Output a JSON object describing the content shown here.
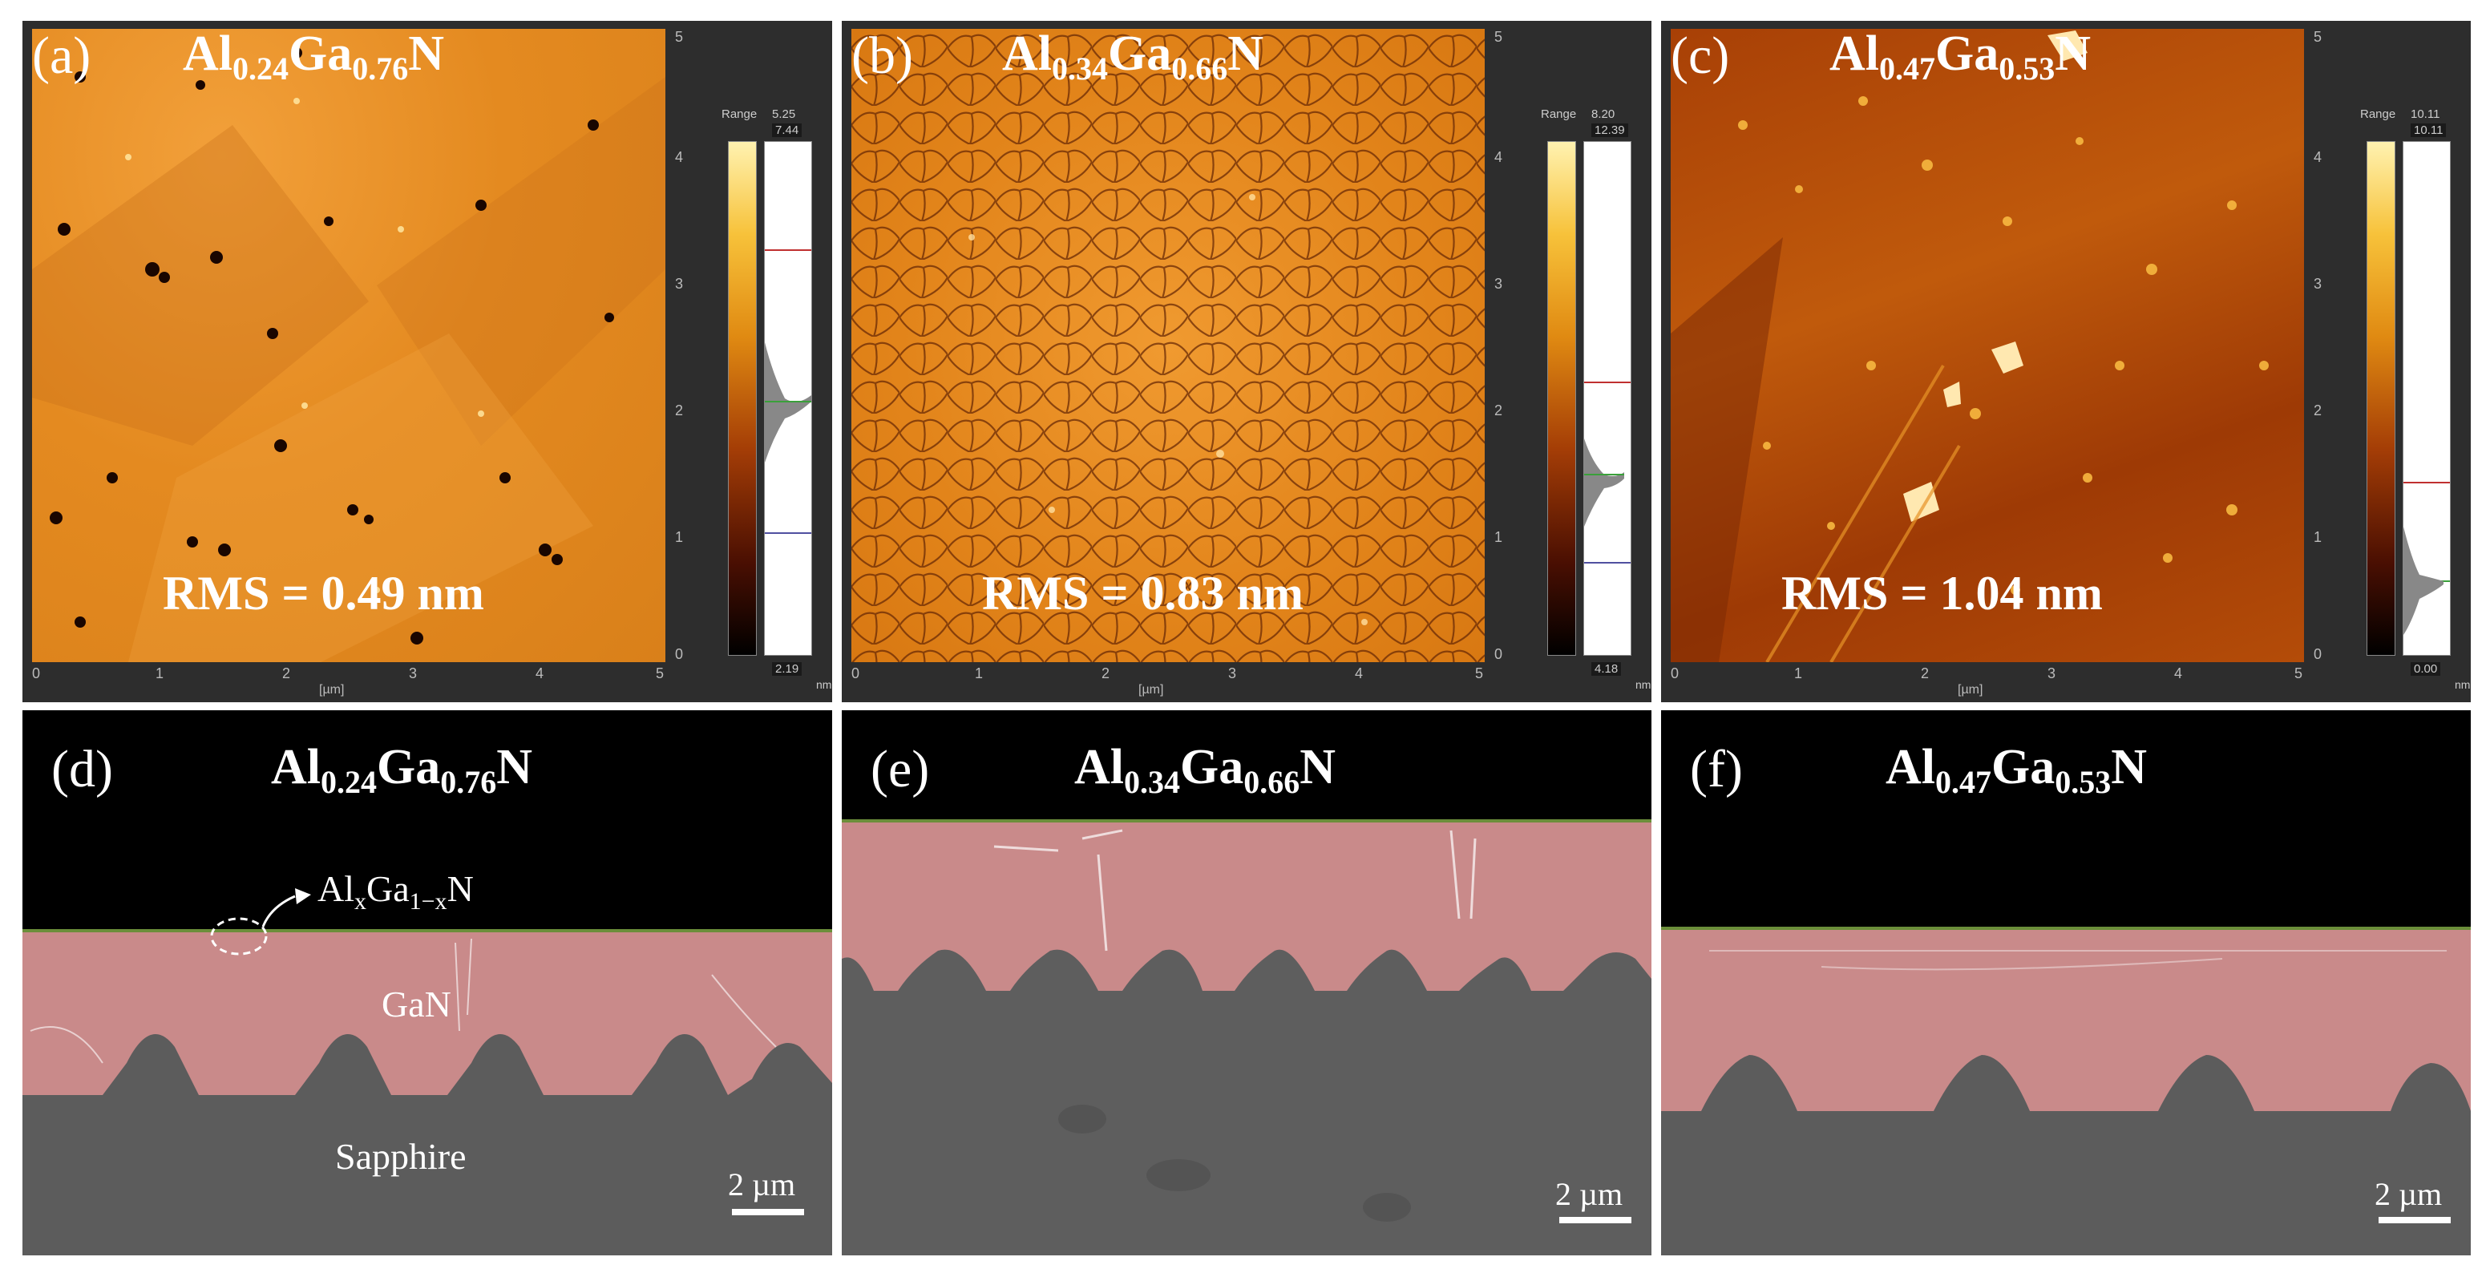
{
  "afm_panels": [
    {
      "label": "(a)",
      "formula_main": [
        "Al",
        "Ga",
        "N"
      ],
      "formula_sub": [
        "0.24",
        "0.76"
      ],
      "rms": "RMS = 0.49 nm",
      "range_label": "Range",
      "range": "5.25",
      "max": "7.44",
      "min": "2.19",
      "unit": "nm"
    },
    {
      "label": "(b)",
      "formula_main": [
        "Al",
        "Ga",
        "N"
      ],
      "formula_sub": [
        "0.34",
        "0.66"
      ],
      "rms": "RMS = 0.83 nm",
      "range_label": "Range",
      "range": "8.20",
      "max": "12.39",
      "min": "4.18",
      "unit": "nm"
    },
    {
      "label": "(c)",
      "formula_main": [
        "Al",
        "Ga",
        "N"
      ],
      "formula_sub": [
        "0.47",
        "0.53"
      ],
      "rms": "RMS = 1.04 nm",
      "range_label": "Range",
      "range": "10.11",
      "max": "10.11",
      "min": "0.00",
      "unit": "nm"
    }
  ],
  "afm_axis": {
    "ticks": [
      "0",
      "1",
      "2",
      "3",
      "4",
      "5"
    ],
    "unit": "[µm]"
  },
  "sem_panels": [
    {
      "label": "(d)",
      "formula_main": [
        "Al",
        "Ga",
        "N"
      ],
      "formula_sub": [
        "0.24",
        "0.76"
      ],
      "scale": "2 µm"
    },
    {
      "label": "(e)",
      "formula_main": [
        "Al",
        "Ga",
        "N"
      ],
      "formula_sub": [
        "0.34",
        "0.66"
      ],
      "scale": "2 µm"
    },
    {
      "label": "(f)",
      "formula_main": [
        "Al",
        "Ga",
        "N"
      ],
      "formula_sub": [
        "0.47",
        "0.53"
      ],
      "scale": "2 µm"
    }
  ],
  "sem_annotations": {
    "film_main": [
      "Al",
      "Ga",
      "N"
    ],
    "film_sub": [
      "x",
      "1−x"
    ],
    "gan": "GaN",
    "substrate": "Sapphire"
  },
  "colors": {
    "afm_a": "#e8901e",
    "afm_b": "#e2841a",
    "afm_c": "#b14a08",
    "gan_overlay": "#c98a8a",
    "sapphire": "#5c5c5c",
    "film": "#6b8e3a"
  }
}
